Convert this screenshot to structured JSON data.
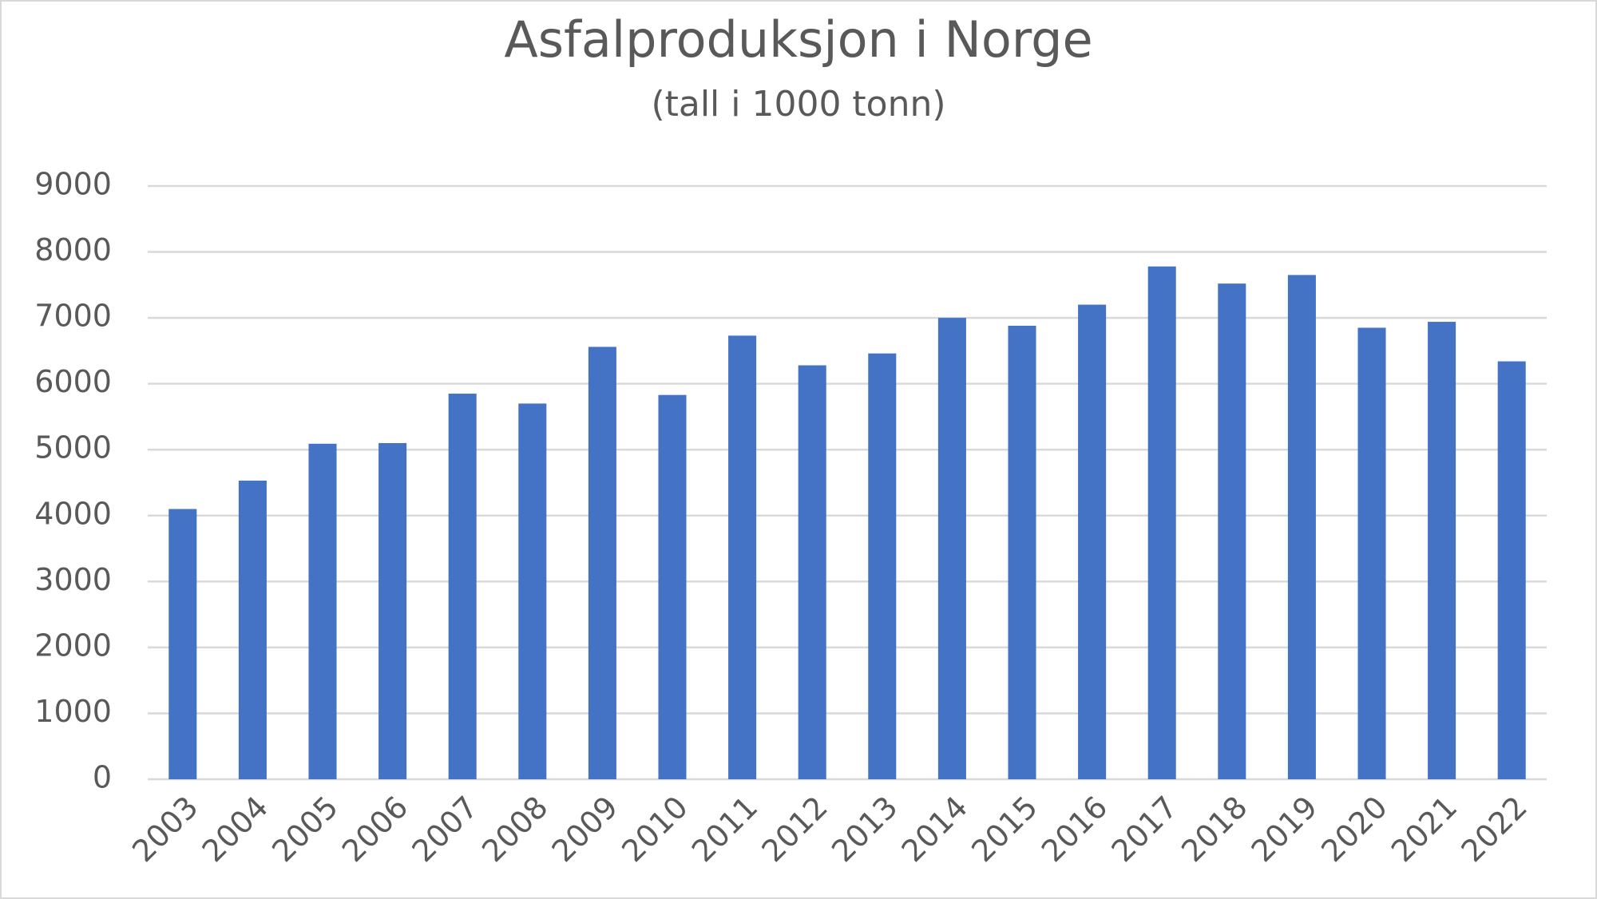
{
  "chart_data": {
    "type": "bar",
    "title": "Asfalproduksjon i Norge",
    "subtitle": "(tall i 1000 tonn)",
    "categories": [
      "2003",
      "2004",
      "2005",
      "2006",
      "2007",
      "2008",
      "2009",
      "2010",
      "2011",
      "2012",
      "2013",
      "2014",
      "2015",
      "2016",
      "2017",
      "2018",
      "2019",
      "2020",
      "2021",
      "2022"
    ],
    "values": [
      4100,
      4530,
      5090,
      5100,
      5850,
      5700,
      6560,
      5830,
      6730,
      6280,
      6460,
      7000,
      6880,
      7200,
      7780,
      7520,
      7650,
      6850,
      6940,
      6340
    ],
    "color": "#4472c4",
    "ylim": [
      0,
      9000
    ],
    "yticks": [
      0,
      1000,
      2000,
      3000,
      4000,
      5000,
      6000,
      7000,
      8000,
      9000
    ],
    "grid": true
  }
}
